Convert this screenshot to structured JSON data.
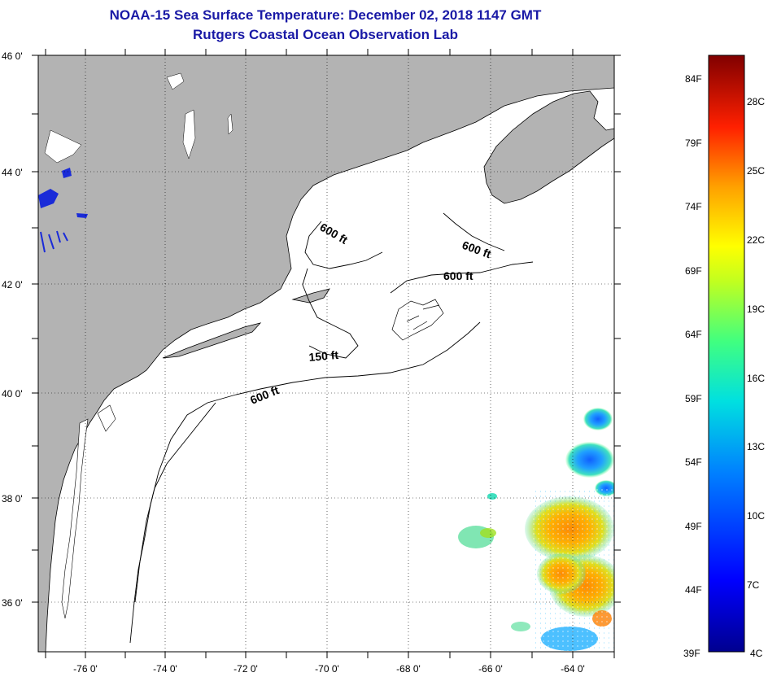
{
  "header": {
    "title": "NOAA-15 Sea Surface Temperature:  December 02, 2018 1147 GMT",
    "subtitle": "Rutgers Coastal Ocean Observation Lab"
  },
  "map": {
    "lon_ticks": [
      "-76 0'",
      "-74 0'",
      "-72 0'",
      "-70 0'",
      "-68 0'",
      "-66 0'",
      "-64 0'"
    ],
    "lat_ticks": [
      "46 0'",
      "44 0'",
      "42 0'",
      "40 0'",
      "38 0'",
      "36 0'"
    ],
    "contour_labels": [
      "600 ft",
      "600 ft",
      "600 ft",
      "150 ft",
      "600 ft"
    ],
    "colors": {
      "land": "#b3b3b3",
      "ocean": "#ffffff"
    }
  },
  "colorbar": {
    "f_labels": [
      "84F",
      "79F",
      "74F",
      "69F",
      "64F",
      "59F",
      "54F",
      "49F",
      "44F",
      "39F"
    ],
    "c_labels": [
      "28C",
      "25C",
      "22C",
      "19C",
      "16C",
      "13C",
      "10C",
      "7C",
      "4C"
    ]
  }
}
